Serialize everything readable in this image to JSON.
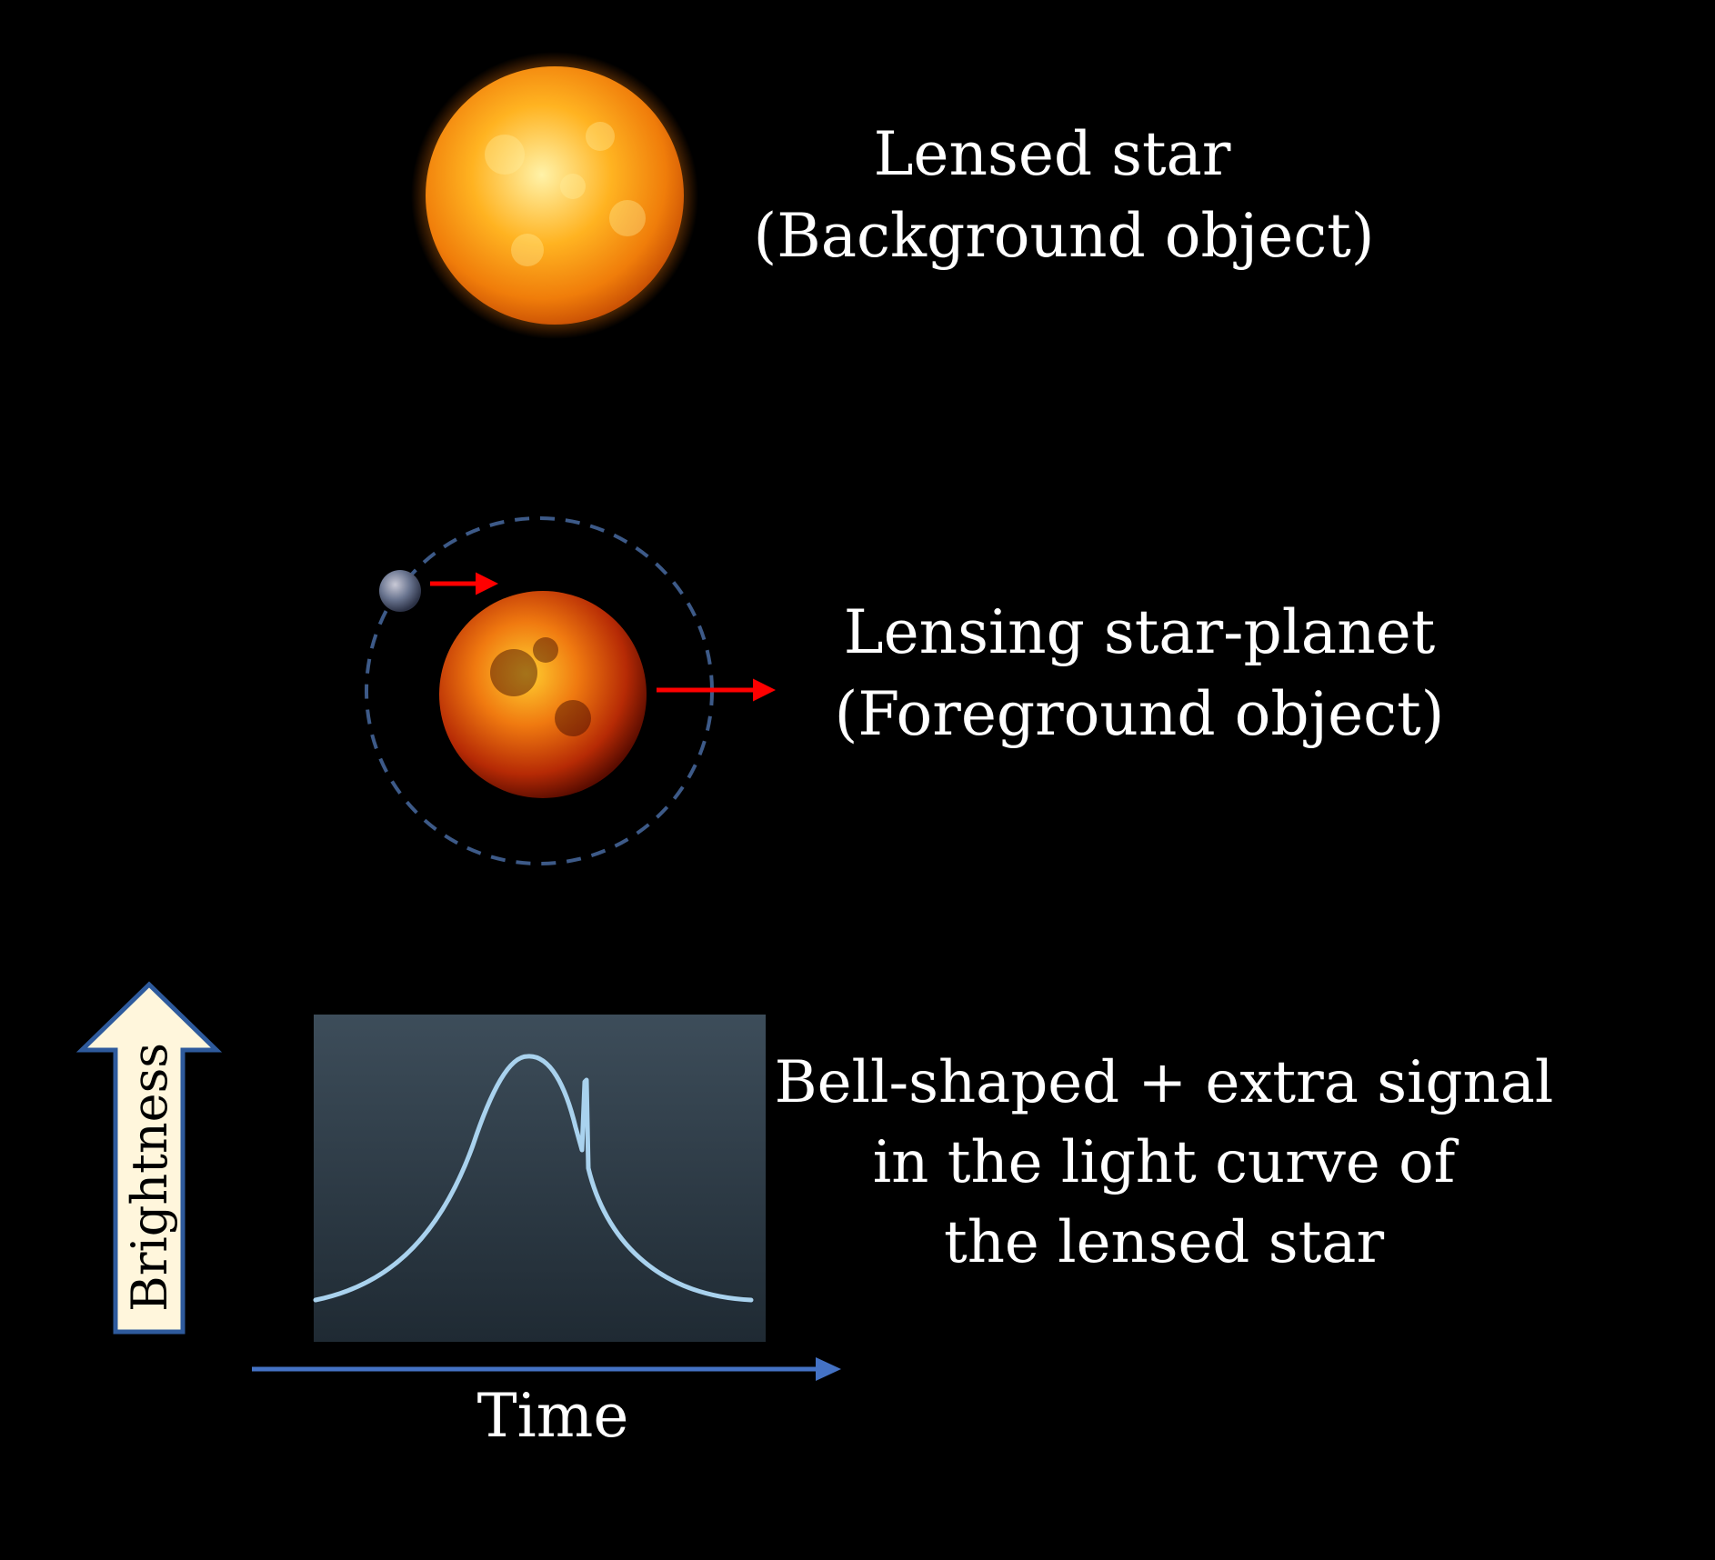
{
  "background_color": "#000000",
  "lensed_star": {
    "label_line1": "Lensed star",
    "label_line2": "(Background object)",
    "colors": [
      "#fff2a8",
      "#ffb321",
      "#f07d0a",
      "#c84e04"
    ]
  },
  "lensing_system": {
    "label_line1": "Lensing star-planet",
    "label_line2": "(Foreground object)",
    "orbit_color": "#3d5a88",
    "arrow_color": "#ff0000",
    "star_colors": [
      "#ffcf30",
      "#f07a10",
      "#b62a05",
      "#5a0c00"
    ],
    "planet_colors": [
      "#c9c9d6",
      "#6a7590",
      "#2c3246"
    ]
  },
  "light_curve": {
    "panel_colors": [
      "#3d4d5a",
      "#1f2a33"
    ],
    "curve_color": "#a9d2ee",
    "y_axis_label": "Brightness",
    "y_arrow_fill": "#fff6dc",
    "y_arrow_stroke": "#2e5a9c",
    "x_axis_label": "Time",
    "x_arrow_color": "#4472c4",
    "caption_line1": "Bell-shaped + extra signal",
    "caption_line2": "in the light curve of",
    "caption_line3": "the lensed star"
  }
}
